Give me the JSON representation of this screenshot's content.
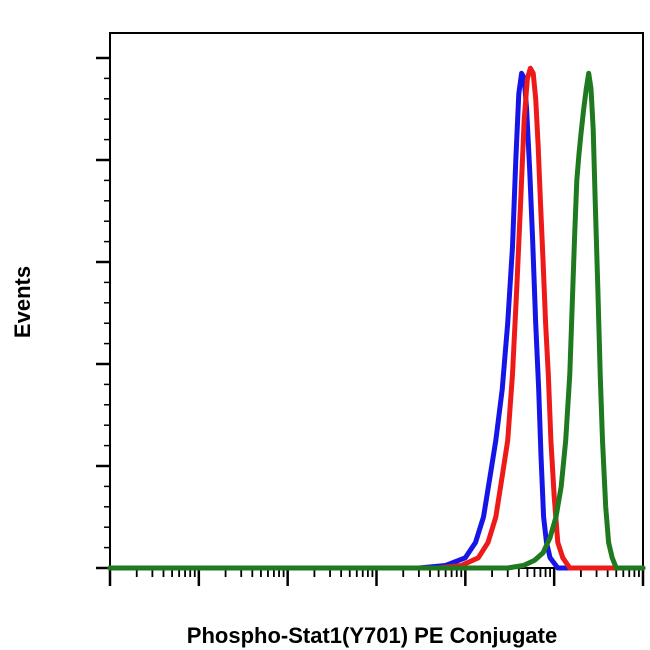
{
  "chart_data": {
    "type": "line",
    "title": "",
    "xlabel": "Phospho-Stat1(Y701) PE Conjugate",
    "ylabel": "Events",
    "x_scale": "log",
    "xlim": [
      1,
      1000000
    ],
    "ylim": [
      0,
      100
    ],
    "grid": false,
    "legend": "none",
    "y_major_ticks": [
      0,
      20,
      40,
      60,
      80,
      100
    ],
    "series": [
      {
        "color": "#1515e8",
        "points": [
          [
            1,
            0
          ],
          [
            3000,
            0
          ],
          [
            6000,
            0.5
          ],
          [
            10000,
            2
          ],
          [
            13000,
            5
          ],
          [
            16000,
            10
          ],
          [
            19000,
            18
          ],
          [
            22000,
            25
          ],
          [
            26000,
            35
          ],
          [
            30000,
            48
          ],
          [
            34000,
            63
          ],
          [
            37000,
            80
          ],
          [
            40000,
            93
          ],
          [
            43000,
            97
          ],
          [
            46000,
            96
          ],
          [
            49000,
            90
          ],
          [
            53000,
            78
          ],
          [
            57000,
            65
          ],
          [
            62000,
            48
          ],
          [
            67000,
            35
          ],
          [
            71000,
            22
          ],
          [
            76000,
            10
          ],
          [
            82000,
            5
          ],
          [
            90000,
            2
          ],
          [
            110000,
            0
          ],
          [
            1000000,
            0
          ]
        ]
      },
      {
        "color": "#ee1a1a",
        "points": [
          [
            1,
            0
          ],
          [
            5000,
            0
          ],
          [
            9000,
            0.5
          ],
          [
            14000,
            2
          ],
          [
            18000,
            5
          ],
          [
            22000,
            10
          ],
          [
            26000,
            18
          ],
          [
            30000,
            25
          ],
          [
            34000,
            38
          ],
          [
            38000,
            55
          ],
          [
            42000,
            72
          ],
          [
            46000,
            88
          ],
          [
            50000,
            96
          ],
          [
            54000,
            98
          ],
          [
            58000,
            97
          ],
          [
            62000,
            92
          ],
          [
            66000,
            83
          ],
          [
            70000,
            72
          ],
          [
            75000,
            60
          ],
          [
            80000,
            48
          ],
          [
            86000,
            38
          ],
          [
            92000,
            25
          ],
          [
            100000,
            14
          ],
          [
            110000,
            5
          ],
          [
            125000,
            2
          ],
          [
            150000,
            0
          ],
          [
            1000000,
            0
          ]
        ]
      },
      {
        "color": "#1f7a1f",
        "points": [
          [
            1,
            0
          ],
          [
            30000,
            0
          ],
          [
            45000,
            0.5
          ],
          [
            60000,
            1.5
          ],
          [
            75000,
            3
          ],
          [
            90000,
            6
          ],
          [
            105000,
            10
          ],
          [
            120000,
            16
          ],
          [
            135000,
            25
          ],
          [
            150000,
            38
          ],
          [
            160000,
            52
          ],
          [
            170000,
            65
          ],
          [
            180000,
            76
          ],
          [
            190000,
            81
          ],
          [
            200000,
            85
          ],
          [
            215000,
            90
          ],
          [
            230000,
            94
          ],
          [
            245000,
            97
          ],
          [
            260000,
            94
          ],
          [
            275000,
            86
          ],
          [
            290000,
            72
          ],
          [
            310000,
            55
          ],
          [
            330000,
            38
          ],
          [
            350000,
            25
          ],
          [
            380000,
            12
          ],
          [
            410000,
            5
          ],
          [
            450000,
            2
          ],
          [
            500000,
            0
          ],
          [
            1000000,
            0
          ]
        ]
      }
    ]
  }
}
